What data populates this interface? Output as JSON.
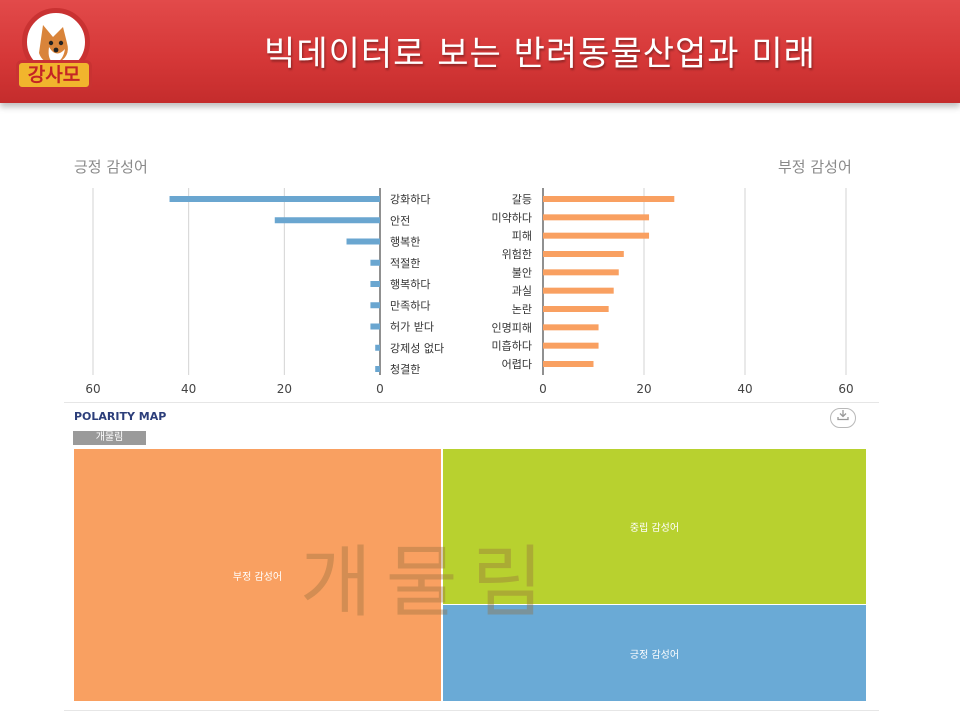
{
  "header": {
    "title": "빅데이터로 보는 반려동물산업과 미래",
    "logo_text": "강사모"
  },
  "labels": {
    "positive": "긍정 감성어",
    "negative": "부정 감성어"
  },
  "chart_data": [
    {
      "type": "bar",
      "orientation": "horizontal",
      "direction": "leftward",
      "title": "긍정 감성어",
      "categories": [
        "강화하다",
        "안전",
        "행복한",
        "적절한",
        "행복하다",
        "만족하다",
        "허가 받다",
        "강제성 없다",
        "청결한"
      ],
      "values": [
        44,
        22,
        7,
        2,
        2,
        2,
        2,
        1,
        1
      ],
      "xlim": [
        0,
        60
      ],
      "xticks": [
        60,
        40,
        20,
        0
      ],
      "color": "#6aa6d0",
      "grid": true
    },
    {
      "type": "bar",
      "orientation": "horizontal",
      "direction": "rightward",
      "title": "부정 감성어",
      "categories": [
        "갈등",
        "미약하다",
        "피해",
        "위험한",
        "불안",
        "과실",
        "논란",
        "인명피해",
        "미흡하다",
        "어렵다"
      ],
      "values": [
        26,
        21,
        21,
        16,
        15,
        14,
        13,
        11,
        11,
        10
      ],
      "xlim": [
        0,
        60
      ],
      "xticks": [
        0,
        20,
        40,
        60
      ],
      "color": "#f9a061",
      "grid": true
    }
  ],
  "polarity_map": {
    "title": "POLARITY MAP",
    "filter": "개물림",
    "download_icon": "download-icon",
    "watermark": "개물림",
    "regions": {
      "negative": {
        "label": "부정 감성어",
        "color": "#f9a061"
      },
      "neutral": {
        "label": "중립 감성어",
        "color": "#b8d12f"
      },
      "positive": {
        "label": "긍정 감성어",
        "color": "#6aaad6"
      }
    }
  }
}
